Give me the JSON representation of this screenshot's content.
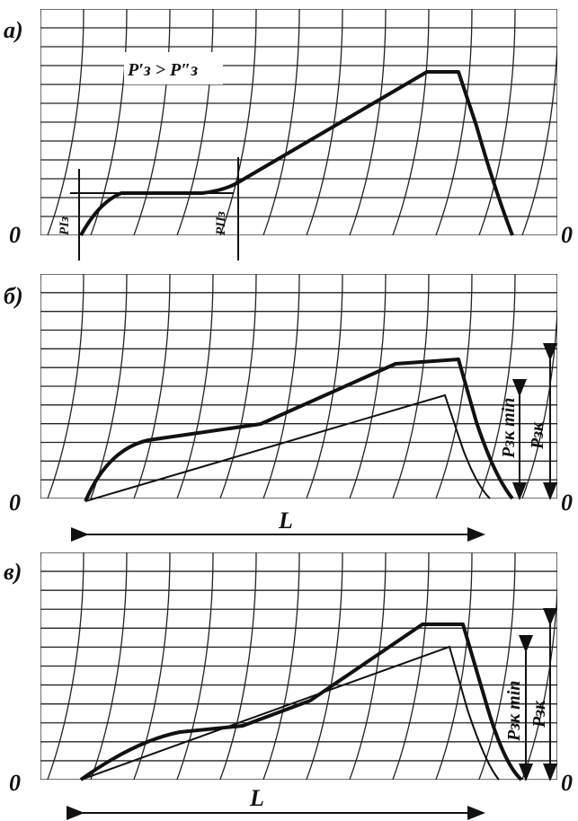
{
  "panels": [
    {
      "label": "а)",
      "zero_left": "0",
      "zero_right": "0",
      "relation": "P′з > P″з",
      "p1": "PIз",
      "p2": "PIIз"
    },
    {
      "label": "б)",
      "zero_left": "0",
      "zero_right": "0",
      "length": "L",
      "p_min": "Pзк min",
      "p_full": "Pзк"
    },
    {
      "label": "в)",
      "zero_left": "0",
      "zero_right": "0",
      "length": "L",
      "p_min": "Pзк min",
      "p_full": "Pзк"
    }
  ]
}
